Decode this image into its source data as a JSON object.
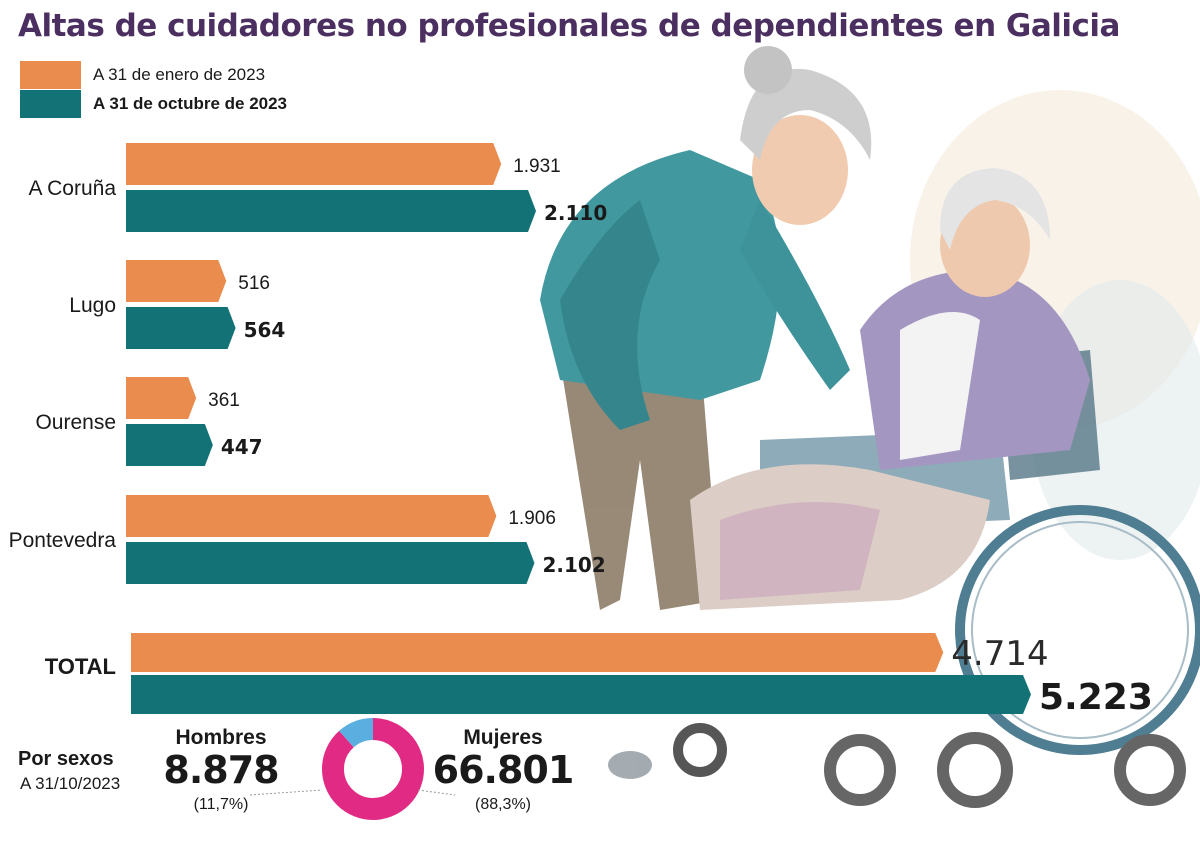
{
  "title": "Altas de cuidadores no profesionales de dependientes en Galicia",
  "colors": {
    "series1": "#ea8c4d",
    "series2": "#137276",
    "title": "#4c2f61",
    "men": "#5aaee0",
    "women": "#e02a84"
  },
  "legend": {
    "series1": "A 31 de enero de 2023",
    "series2": "A 31 de octubre de 2023"
  },
  "chart_data": {
    "type": "bar",
    "orientation": "horizontal",
    "title": "Altas de cuidadores no profesionales de dependientes en Galicia",
    "categories": [
      "A Coruña",
      "Lugo",
      "Ourense",
      "Pontevedra"
    ],
    "series": [
      {
        "name": "A 31 de enero de 2023",
        "values": [
          1931,
          516,
          361,
          1906
        ],
        "labels": [
          "1.931",
          "516",
          "361",
          "1.906"
        ]
      },
      {
        "name": "A 31 de octubre de 2023",
        "values": [
          2110,
          564,
          447,
          2102
        ],
        "labels": [
          "2.110",
          "564",
          "447",
          "2.102"
        ]
      }
    ],
    "total": {
      "label": "TOTAL",
      "values": [
        4714,
        5223
      ],
      "labels": [
        "4.714",
        "5.223"
      ]
    },
    "legend_position": "top-left",
    "grid": false
  },
  "by_sex": {
    "heading": "Por sexos",
    "date": "A 31/10/2023",
    "men": {
      "label": "Hombres",
      "value": "8.878",
      "share": "(11,7%)",
      "percent": 11.7
    },
    "women": {
      "label": "Mujeres",
      "value": "66.801",
      "share": "(88,3%)",
      "percent": 88.3
    }
  },
  "illustration": {
    "description_icon": "caregiver-helping-elderly-woman-in-wheelchair-illustration"
  }
}
